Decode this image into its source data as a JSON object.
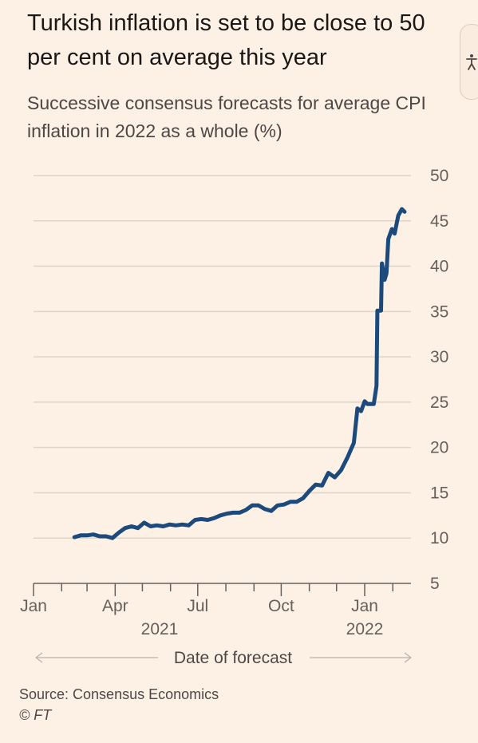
{
  "title": "Turkish inflation is set to be close to 50 per cent on average this year",
  "subtitle": "Successive consensus forecasts for average CPI inflation in 2022 as a whole (%)",
  "source": "Source: Consensus Economics",
  "copyright": "© FT",
  "icons": {
    "accessibility": "accessibility-person-icon"
  },
  "colors": {
    "background": "#fdf1e6",
    "line": "#1c4a7d",
    "grid": "#e0d4c8"
  },
  "chart_data": {
    "type": "line",
    "title": "Turkish inflation is set to be close to 50 per cent on average this year",
    "subtitle": "Successive consensus forecasts for average CPI inflation in 2022 as a whole (%)",
    "xlabel": "Date of forecast",
    "ylabel": "",
    "ylim": [
      5,
      50
    ],
    "y_ticks": [
      "5",
      "10",
      "15",
      "20",
      "25",
      "30",
      "35",
      "40",
      "45",
      "50"
    ],
    "y_axis_side": "right",
    "grid": true,
    "x_ticks": [
      {
        "date": "2021-01-01",
        "label": "Jan",
        "year": "2021"
      },
      {
        "date": "2021-04-01",
        "label": "Apr",
        "year": ""
      },
      {
        "date": "2021-07-01",
        "label": "Jul",
        "year": ""
      },
      {
        "date": "2021-10-01",
        "label": "Oct",
        "year": ""
      },
      {
        "date": "2022-01-01",
        "label": "Jan",
        "year": "2022"
      }
    ],
    "series": [
      {
        "color": "#1c4a7d",
        "points": [
          [
            "2021-02-15",
            10.1
          ],
          [
            "2021-02-22",
            10.3
          ],
          [
            "2021-03-01",
            10.3
          ],
          [
            "2021-03-08",
            10.4
          ],
          [
            "2021-03-15",
            10.2
          ],
          [
            "2021-03-22",
            10.2
          ],
          [
            "2021-03-29",
            10.0
          ],
          [
            "2021-04-05",
            10.6
          ],
          [
            "2021-04-12",
            11.1
          ],
          [
            "2021-04-19",
            11.3
          ],
          [
            "2021-04-26",
            11.1
          ],
          [
            "2021-05-03",
            11.7
          ],
          [
            "2021-05-10",
            11.3
          ],
          [
            "2021-05-17",
            11.4
          ],
          [
            "2021-05-24",
            11.3
          ],
          [
            "2021-05-31",
            11.5
          ],
          [
            "2021-06-07",
            11.4
          ],
          [
            "2021-06-14",
            11.5
          ],
          [
            "2021-06-21",
            11.4
          ],
          [
            "2021-06-28",
            12.0
          ],
          [
            "2021-07-05",
            12.1
          ],
          [
            "2021-07-12",
            12.0
          ],
          [
            "2021-07-19",
            12.2
          ],
          [
            "2021-07-26",
            12.5
          ],
          [
            "2021-08-02",
            12.7
          ],
          [
            "2021-08-09",
            12.8
          ],
          [
            "2021-08-16",
            12.8
          ],
          [
            "2021-08-23",
            13.1
          ],
          [
            "2021-08-30",
            13.6
          ],
          [
            "2021-09-06",
            13.6
          ],
          [
            "2021-09-13",
            13.2
          ],
          [
            "2021-09-20",
            13.0
          ],
          [
            "2021-09-27",
            13.6
          ],
          [
            "2021-10-04",
            13.7
          ],
          [
            "2021-10-11",
            14.0
          ],
          [
            "2021-10-18",
            14.0
          ],
          [
            "2021-10-25",
            14.4
          ],
          [
            "2021-11-01",
            15.2
          ],
          [
            "2021-11-08",
            15.9
          ],
          [
            "2021-11-15",
            15.8
          ],
          [
            "2021-11-22",
            17.2
          ],
          [
            "2021-11-29",
            16.7
          ],
          [
            "2021-12-06",
            17.5
          ],
          [
            "2021-12-13",
            18.9
          ],
          [
            "2021-12-20",
            20.5
          ],
          [
            "2021-12-24",
            24.3
          ],
          [
            "2021-12-28",
            24.0
          ],
          [
            "2022-01-01",
            25.1
          ],
          [
            "2022-01-04",
            24.8
          ],
          [
            "2022-01-11",
            24.8
          ],
          [
            "2022-01-14",
            26.8
          ],
          [
            "2022-01-15",
            35.1
          ],
          [
            "2022-01-19",
            35.1
          ],
          [
            "2022-01-20",
            40.3
          ],
          [
            "2022-01-23",
            38.5
          ],
          [
            "2022-01-25",
            39.2
          ],
          [
            "2022-01-27",
            43.0
          ],
          [
            "2022-01-31",
            44.1
          ],
          [
            "2022-02-03",
            43.6
          ],
          [
            "2022-02-07",
            45.6
          ],
          [
            "2022-02-11",
            46.3
          ],
          [
            "2022-02-14",
            46.0
          ]
        ]
      }
    ]
  }
}
